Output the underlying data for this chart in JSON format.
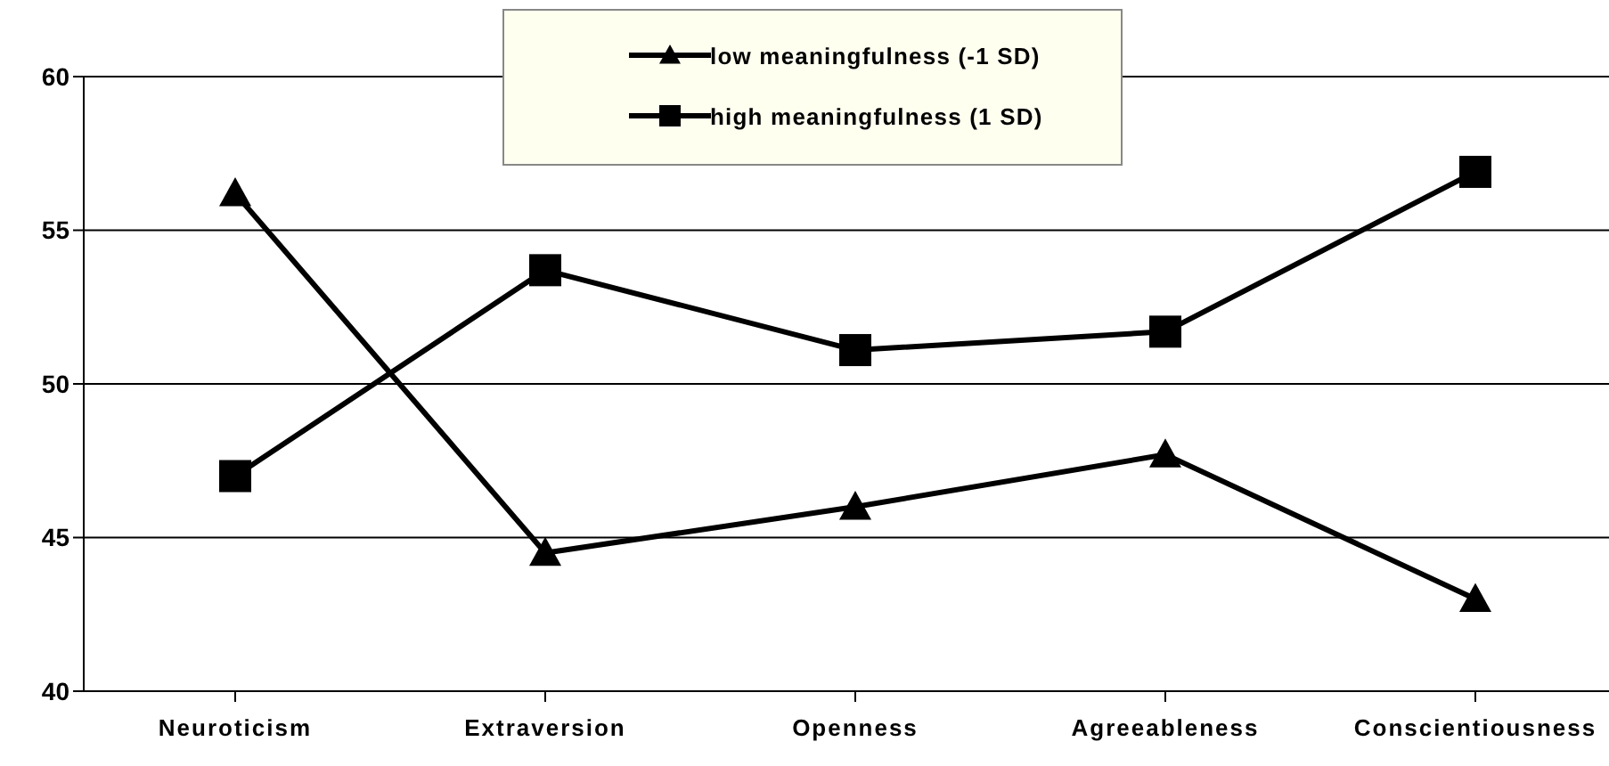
{
  "chart_data": {
    "type": "line",
    "categories": [
      "Neuroticism",
      "Extraversion",
      "Openness",
      "Agreeableness",
      "Conscientiousness"
    ],
    "series": [
      {
        "name": "low meaningfulness  (-1 SD)",
        "color": "#000000",
        "marker": "triangle",
        "values": [
          56.2,
          44.5,
          46.0,
          47.7,
          43.0
        ]
      },
      {
        "name": "high meaningfulness (1 SD)",
        "color": "#000000",
        "marker": "square",
        "values": [
          47.0,
          53.7,
          51.1,
          51.7,
          56.9
        ]
      }
    ],
    "ylim": [
      40,
      60
    ],
    "yticks": [
      40,
      45,
      50,
      55,
      60
    ],
    "grid": "y",
    "legend": "top"
  }
}
